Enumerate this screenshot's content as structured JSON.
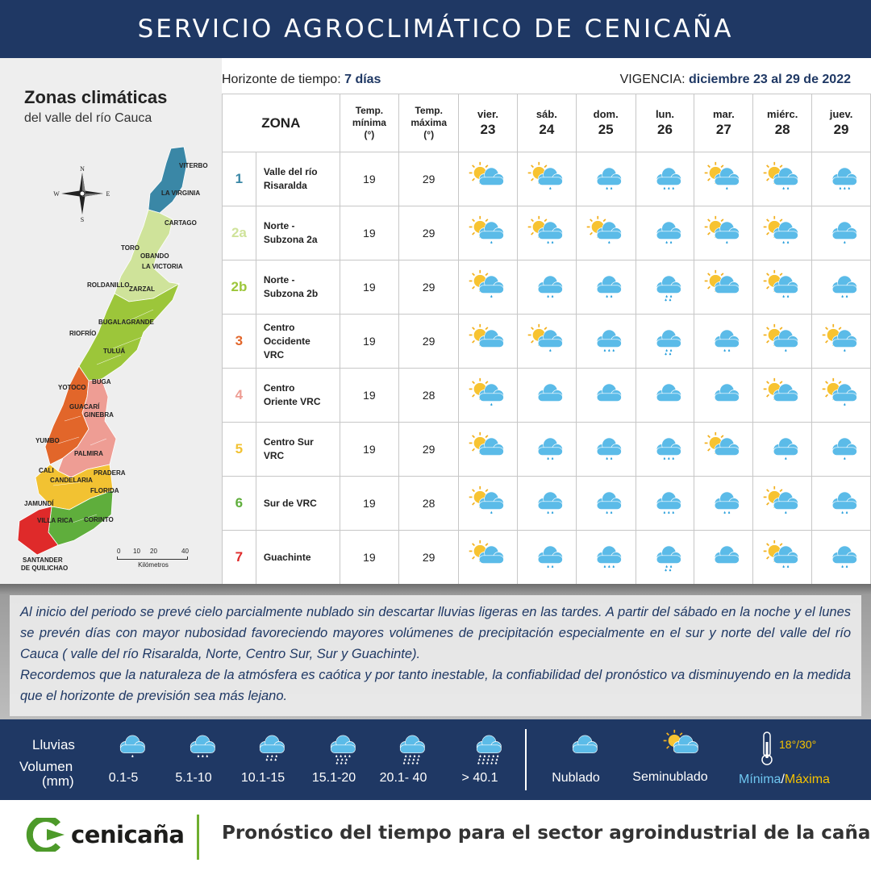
{
  "header": {
    "title": "SERVICIO AGROCLIMÁTICO DE CENICAÑA"
  },
  "map": {
    "title": "Zonas climáticas",
    "subtitle": "del valle del río Cauca",
    "compass": {
      "n": "N",
      "s": "S",
      "e": "E",
      "w": "W"
    },
    "towns": [
      "VITERBO",
      "LA VIRGINIA",
      "CARTAGO",
      "TORO",
      "OBANDO",
      "LA VICTORIA",
      "ROLDANILLO",
      "ZARZAL",
      "BUGALAGRANDE",
      "RIOFRÍO",
      "TULUÁ",
      "BUGA",
      "YOTOCO",
      "GUACARÍ",
      "GINEBRA",
      "YUMBO",
      "PALMIRA",
      "CALI",
      "PRADERA",
      "CANDELARIA",
      "FLORIDA",
      "JAMUNDÍ",
      "VILLA RICA",
      "CORINTO",
      "SANTANDER",
      "DE QUILICHAO"
    ],
    "scale": {
      "marks": [
        "0",
        "10",
        "20",
        "40"
      ],
      "unit": "Kilómetros"
    },
    "zone_colors": {
      "1": "#3a87a6",
      "2a": "#cfe39a",
      "2b": "#9cc63a",
      "3": "#e2662a",
      "4": "#ee9d94",
      "5": "#f2c232",
      "6": "#5fae3c",
      "7": "#df2a2a"
    }
  },
  "forecast": {
    "horizon_label": "Horizonte de tiempo:",
    "horizon_value": "7 días",
    "vigencia_label": "VIGENCIA:",
    "vigencia_value": "diciembre 23 al 29 de 2022",
    "headers": {
      "zona": "ZONA",
      "tmin_1": "Temp.",
      "tmin_2": "mínima",
      "tmin_3": "(°)",
      "tmax_1": "Temp.",
      "tmax_2": "máxima",
      "tmax_3": "(°)"
    },
    "days": [
      {
        "name": "vier.",
        "num": "23"
      },
      {
        "name": "sáb.",
        "num": "24"
      },
      {
        "name": "dom.",
        "num": "25"
      },
      {
        "name": "lun.",
        "num": "26"
      },
      {
        "name": "mar.",
        "num": "27"
      },
      {
        "name": "miérc.",
        "num": "28"
      },
      {
        "name": "juev.",
        "num": "29"
      }
    ],
    "zones": [
      {
        "id": "1",
        "color": "#3a87a6",
        "name_1": "Valle del río",
        "name_2": "Risaralda",
        "name_3": "",
        "tmin": "19",
        "tmax": "29",
        "icons": [
          {
            "sun": true,
            "drops": 0
          },
          {
            "sun": true,
            "drops": 1
          },
          {
            "sun": false,
            "drops": 2
          },
          {
            "sun": false,
            "drops": 3
          },
          {
            "sun": true,
            "drops": 1
          },
          {
            "sun": true,
            "drops": 2
          },
          {
            "sun": false,
            "drops": 3
          }
        ]
      },
      {
        "id": "2a",
        "color": "#cfe39a",
        "name_1": "Norte -",
        "name_2": "Subzona 2a",
        "name_3": "",
        "tmin": "19",
        "tmax": "29",
        "icons": [
          {
            "sun": true,
            "drops": 1
          },
          {
            "sun": true,
            "drops": 2
          },
          {
            "sun": true,
            "drops": 1
          },
          {
            "sun": false,
            "drops": 2
          },
          {
            "sun": true,
            "drops": 1
          },
          {
            "sun": true,
            "drops": 2
          },
          {
            "sun": false,
            "drops": 1
          }
        ]
      },
      {
        "id": "2b",
        "color": "#9cc63a",
        "name_1": "Norte -",
        "name_2": "Subzona 2b",
        "name_3": "",
        "tmin": "19",
        "tmax": "29",
        "icons": [
          {
            "sun": true,
            "drops": 1
          },
          {
            "sun": false,
            "drops": 2
          },
          {
            "sun": false,
            "drops": 2
          },
          {
            "sun": false,
            "drops": 4
          },
          {
            "sun": true,
            "drops": 0
          },
          {
            "sun": true,
            "drops": 2
          },
          {
            "sun": false,
            "drops": 2
          }
        ]
      },
      {
        "id": "3",
        "color": "#e2662a",
        "name_1": "Centro",
        "name_2": "Occidente",
        "name_3": "VRC",
        "tmin": "19",
        "tmax": "29",
        "icons": [
          {
            "sun": true,
            "drops": 0
          },
          {
            "sun": true,
            "drops": 1
          },
          {
            "sun": false,
            "drops": 3
          },
          {
            "sun": false,
            "drops": 4
          },
          {
            "sun": false,
            "drops": 2
          },
          {
            "sun": true,
            "drops": 1
          },
          {
            "sun": true,
            "drops": 1
          }
        ]
      },
      {
        "id": "4",
        "color": "#ee9d94",
        "name_1": "Centro",
        "name_2": "Oriente VRC",
        "name_3": "",
        "tmin": "19",
        "tmax": "28",
        "icons": [
          {
            "sun": true,
            "drops": 1
          },
          {
            "sun": false,
            "drops": 0
          },
          {
            "sun": false,
            "drops": 0
          },
          {
            "sun": false,
            "drops": 0
          },
          {
            "sun": false,
            "drops": 0
          },
          {
            "sun": true,
            "drops": 0
          },
          {
            "sun": true,
            "drops": 1
          }
        ]
      },
      {
        "id": "5",
        "color": "#f2c232",
        "name_1": "Centro Sur",
        "name_2": "VRC",
        "name_3": "",
        "tmin": "19",
        "tmax": "29",
        "icons": [
          {
            "sun": true,
            "drops": 0
          },
          {
            "sun": false,
            "drops": 2
          },
          {
            "sun": false,
            "drops": 2
          },
          {
            "sun": false,
            "drops": 3
          },
          {
            "sun": true,
            "drops": 0
          },
          {
            "sun": false,
            "drops": 1
          },
          {
            "sun": false,
            "drops": 1
          }
        ]
      },
      {
        "id": "6",
        "color": "#5fae3c",
        "name_1": "Sur de VRC",
        "name_2": "",
        "name_3": "",
        "tmin": "19",
        "tmax": "28",
        "icons": [
          {
            "sun": true,
            "drops": 1
          },
          {
            "sun": false,
            "drops": 2
          },
          {
            "sun": false,
            "drops": 2
          },
          {
            "sun": false,
            "drops": 3
          },
          {
            "sun": false,
            "drops": 2
          },
          {
            "sun": true,
            "drops": 1
          },
          {
            "sun": false,
            "drops": 2
          }
        ]
      },
      {
        "id": "7",
        "color": "#df2a2a",
        "name_1": "Guachinte",
        "name_2": "",
        "name_3": "",
        "tmin": "19",
        "tmax": "29",
        "icons": [
          {
            "sun": true,
            "drops": 0
          },
          {
            "sun": false,
            "drops": 2
          },
          {
            "sun": false,
            "drops": 3
          },
          {
            "sun": false,
            "drops": 4
          },
          {
            "sun": false,
            "drops": 0
          },
          {
            "sun": true,
            "drops": 2
          },
          {
            "sun": false,
            "drops": 2
          }
        ]
      }
    ]
  },
  "description": {
    "p1": "Al inicio del periodo se prevé cielo parcialmente nublado sin descartar lluvias ligeras en las tardes.  A partir del sábado en la noche y el lunes se prevén días con mayor nubosidad favoreciendo mayores volúmenes de precipitación especialmente en el sur y norte del valle del río Cauca ( valle del río Risaralda, Norte, Centro Sur, Sur y Guachinte).",
    "p2": "Recordemos que la naturaleza de la atmósfera es caótica y por tanto inestable, la confiabilidad del pronóstico va disminuyendo en la medida que el horizonte de previsión sea más lejano."
  },
  "legend": {
    "lluvias_label": "Lluvias",
    "volumen_label": "Volumen",
    "mm_label": "(mm)",
    "rain_levels": [
      {
        "label": "0.1-5",
        "drops": 1
      },
      {
        "label": "5.1-10",
        "drops": 3
      },
      {
        "label": "10.1-15",
        "drops": 6
      },
      {
        "label": "15.1-20",
        "drops": 10
      },
      {
        "label": "20.1- 40",
        "drops": 12
      },
      {
        "label": "> 40.1",
        "drops": 15
      }
    ],
    "nublado_label": "Nublado",
    "seminublado_label": "Seminublado",
    "temp_example": "18°/30°",
    "minima_label": "Mínima",
    "slash": "/",
    "maxima_label": "Máxima"
  },
  "footer": {
    "logo_text": "cenicaña",
    "tagline": "Pronóstico del tiempo para el sector agroindustrial de la caña"
  }
}
